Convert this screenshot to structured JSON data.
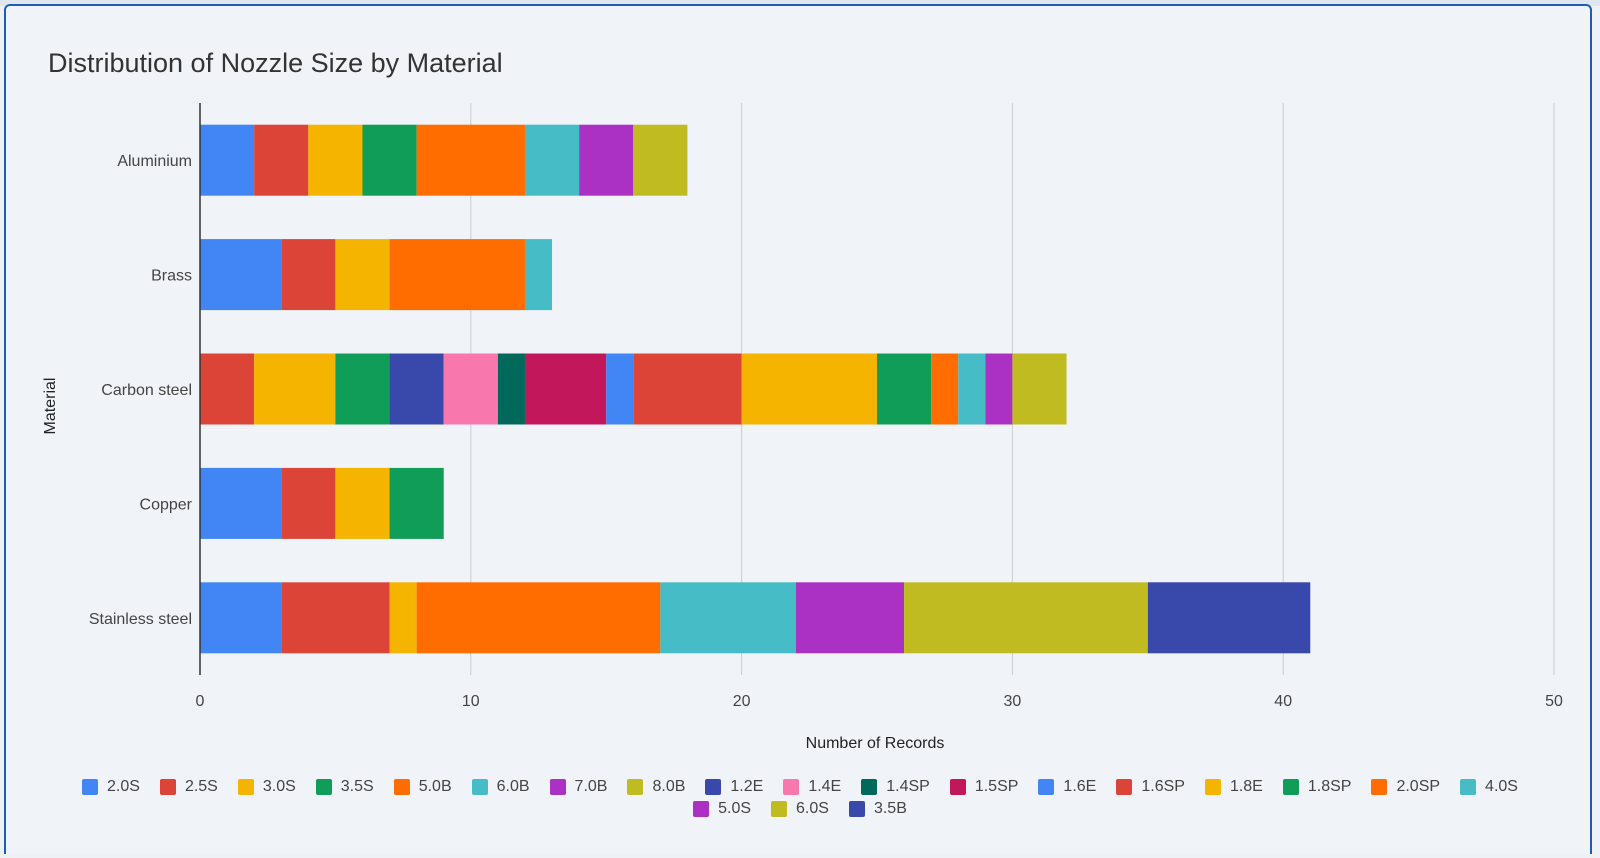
{
  "chart_data": {
    "type": "bar",
    "orientation": "horizontal",
    "stacked": true,
    "title": "Distribution of Nozzle Size by Material",
    "xlabel": "Number of Records",
    "ylabel": "Material",
    "xlim": [
      0,
      50
    ],
    "xticks": [
      0,
      10,
      20,
      30,
      40,
      50
    ],
    "grid": true,
    "legend_position": "bottom",
    "categories": [
      "Aluminium",
      "Brass",
      "Carbon steel",
      "Copper",
      "Stainless steel"
    ],
    "series": [
      {
        "name": "2.0S",
        "color": "#4285f4",
        "values": [
          2,
          3,
          0,
          3,
          3
        ]
      },
      {
        "name": "2.5S",
        "color": "#db4437",
        "values": [
          2,
          2,
          2,
          2,
          4
        ]
      },
      {
        "name": "3.0S",
        "color": "#f4b400",
        "values": [
          2,
          2,
          3,
          2,
          1
        ]
      },
      {
        "name": "3.5S",
        "color": "#0f9d58",
        "values": [
          2,
          0,
          2,
          2,
          0
        ]
      },
      {
        "name": "5.0B",
        "color": "#ff6d00",
        "values": [
          4,
          5,
          0,
          0,
          9
        ]
      },
      {
        "name": "6.0B",
        "color": "#46bdc6",
        "values": [
          2,
          1,
          0,
          0,
          5
        ]
      },
      {
        "name": "7.0B",
        "color": "#ab30c4",
        "values": [
          2,
          0,
          0,
          0,
          4
        ]
      },
      {
        "name": "8.0B",
        "color": "#c0bb21",
        "values": [
          2,
          0,
          0,
          0,
          9
        ]
      },
      {
        "name": "1.2E",
        "color": "#3949ab",
        "values": [
          0,
          0,
          2,
          0,
          0
        ]
      },
      {
        "name": "1.4E",
        "color": "#f878ae",
        "values": [
          0,
          0,
          2,
          0,
          0
        ]
      },
      {
        "name": "1.4SP",
        "color": "#00695c",
        "values": [
          0,
          0,
          1,
          0,
          0
        ]
      },
      {
        "name": "1.5SP",
        "color": "#c2185b",
        "values": [
          0,
          0,
          3,
          0,
          0
        ]
      },
      {
        "name": "1.6E",
        "color": "#4285f4",
        "values": [
          0,
          0,
          1,
          0,
          0
        ]
      },
      {
        "name": "1.6SP",
        "color": "#db4437",
        "values": [
          0,
          0,
          4,
          0,
          0
        ]
      },
      {
        "name": "1.8E",
        "color": "#f4b400",
        "values": [
          0,
          0,
          5,
          0,
          0
        ]
      },
      {
        "name": "1.8SP",
        "color": "#0f9d58",
        "values": [
          0,
          0,
          2,
          0,
          0
        ]
      },
      {
        "name": "2.0SP",
        "color": "#ff6d00",
        "values": [
          0,
          0,
          1,
          0,
          0
        ]
      },
      {
        "name": "4.0S",
        "color": "#46bdc6",
        "values": [
          0,
          0,
          1,
          0,
          0
        ]
      },
      {
        "name": "5.0S",
        "color": "#ab30c4",
        "values": [
          0,
          0,
          1,
          0,
          0
        ]
      },
      {
        "name": "6.0S",
        "color": "#c0bb21",
        "values": [
          0,
          0,
          2,
          0,
          0
        ]
      },
      {
        "name": "3.5B",
        "color": "#3949ab",
        "values": [
          0,
          0,
          0,
          0,
          6
        ]
      }
    ]
  }
}
